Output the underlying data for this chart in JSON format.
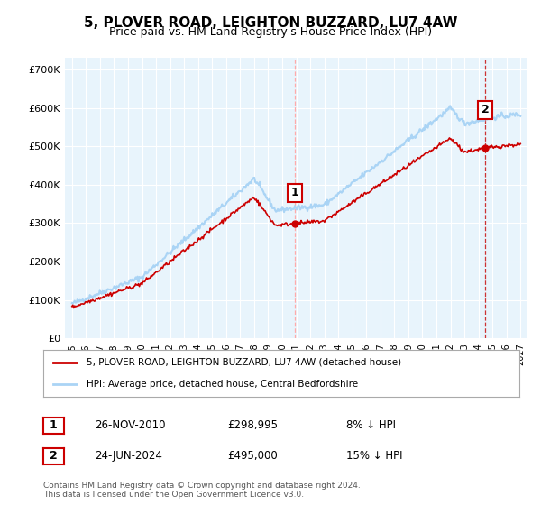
{
  "title_line1": "5, PLOVER ROAD, LEIGHTON BUZZARD, LU7 4AW",
  "title_line2": "Price paid vs. HM Land Registry's House Price Index (HPI)",
  "ylabel_ticks": [
    "£0",
    "£100K",
    "£200K",
    "£300K",
    "£400K",
    "£500K",
    "£600K",
    "£700K"
  ],
  "ylabel_values": [
    0,
    100000,
    200000,
    300000,
    400000,
    500000,
    600000,
    700000
  ],
  "ylim": [
    0,
    730000
  ],
  "xlim_start": 1995,
  "xlim_end": 2027,
  "xticks": [
    1995,
    1996,
    1997,
    1998,
    1999,
    2000,
    2001,
    2002,
    2003,
    2004,
    2005,
    2006,
    2007,
    2008,
    2009,
    2010,
    2011,
    2012,
    2013,
    2014,
    2015,
    2016,
    2017,
    2018,
    2019,
    2020,
    2021,
    2022,
    2023,
    2024,
    2025,
    2026,
    2027
  ],
  "hpi_color": "#aad4f5",
  "price_color": "#cc0000",
  "vline1_x": 2010.9,
  "vline2_x": 2024.48,
  "marker1_x": 2010.9,
  "marker1_y": 298995,
  "marker2_x": 2024.48,
  "marker2_y": 495000,
  "annotation1_label": "1",
  "annotation2_label": "2",
  "legend_line1": "5, PLOVER ROAD, LEIGHTON BUZZARD, LU7 4AW (detached house)",
  "legend_line2": "HPI: Average price, detached house, Central Bedfordshire",
  "table_row1_num": "1",
  "table_row1_date": "26-NOV-2010",
  "table_row1_price": "£298,995",
  "table_row1_hpi": "8% ↓ HPI",
  "table_row2_num": "2",
  "table_row2_date": "24-JUN-2024",
  "table_row2_price": "£495,000",
  "table_row2_hpi": "15% ↓ HPI",
  "footer": "Contains HM Land Registry data © Crown copyright and database right 2024.\nThis data is licensed under the Open Government Licence v3.0.",
  "background_color": "#ffffff",
  "plot_bg_color": "#e8f4fc",
  "grid_color": "#ffffff"
}
